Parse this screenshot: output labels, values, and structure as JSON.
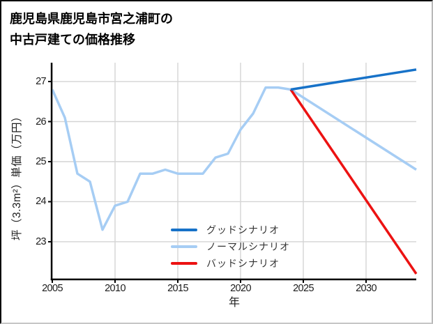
{
  "title": {
    "line1": "鹿児島県鹿児島市宮之浦町の",
    "line2": "中古戸建ての価格推移"
  },
  "chart_data": {
    "type": "line",
    "title": "鹿児島県鹿児島市宮之浦町の中古戸建ての価格推移",
    "xlabel": "年",
    "ylabel": "坪（3.3m²）単価（万円）",
    "xlim": [
      2005,
      2034
    ],
    "ylim": [
      22.06,
      27.47
    ],
    "xticks": [
      2005,
      2010,
      2015,
      2020,
      2025,
      2030
    ],
    "yticks": [
      23,
      24,
      25,
      26,
      27
    ],
    "grid": true,
    "grid_color": "#d4d4d4",
    "axis_color": "#000000",
    "legend_position": "lower-center-inside",
    "series": [
      {
        "name": "グッドシナリオ",
        "color": "#1772c8",
        "x": [
          2024,
          2034
        ],
        "values": [
          26.8,
          27.3
        ]
      },
      {
        "name": "ノーマルシナリオ",
        "color": "#a6cdf4",
        "x": [
          2005,
          2006,
          2007,
          2008,
          2009,
          2010,
          2011,
          2012,
          2013,
          2014,
          2015,
          2016,
          2017,
          2018,
          2019,
          2020,
          2021,
          2022,
          2023,
          2024,
          2034
        ],
        "values": [
          26.8,
          26.1,
          24.7,
          24.5,
          23.3,
          23.9,
          24.0,
          24.7,
          24.7,
          24.8,
          24.7,
          24.7,
          24.7,
          25.1,
          25.2,
          25.8,
          26.2,
          26.85,
          26.85,
          26.8,
          24.8
        ]
      },
      {
        "name": "バッドシナリオ",
        "color": "#ec1212",
        "x": [
          2024,
          2034
        ],
        "values": [
          26.8,
          22.2
        ]
      }
    ]
  }
}
